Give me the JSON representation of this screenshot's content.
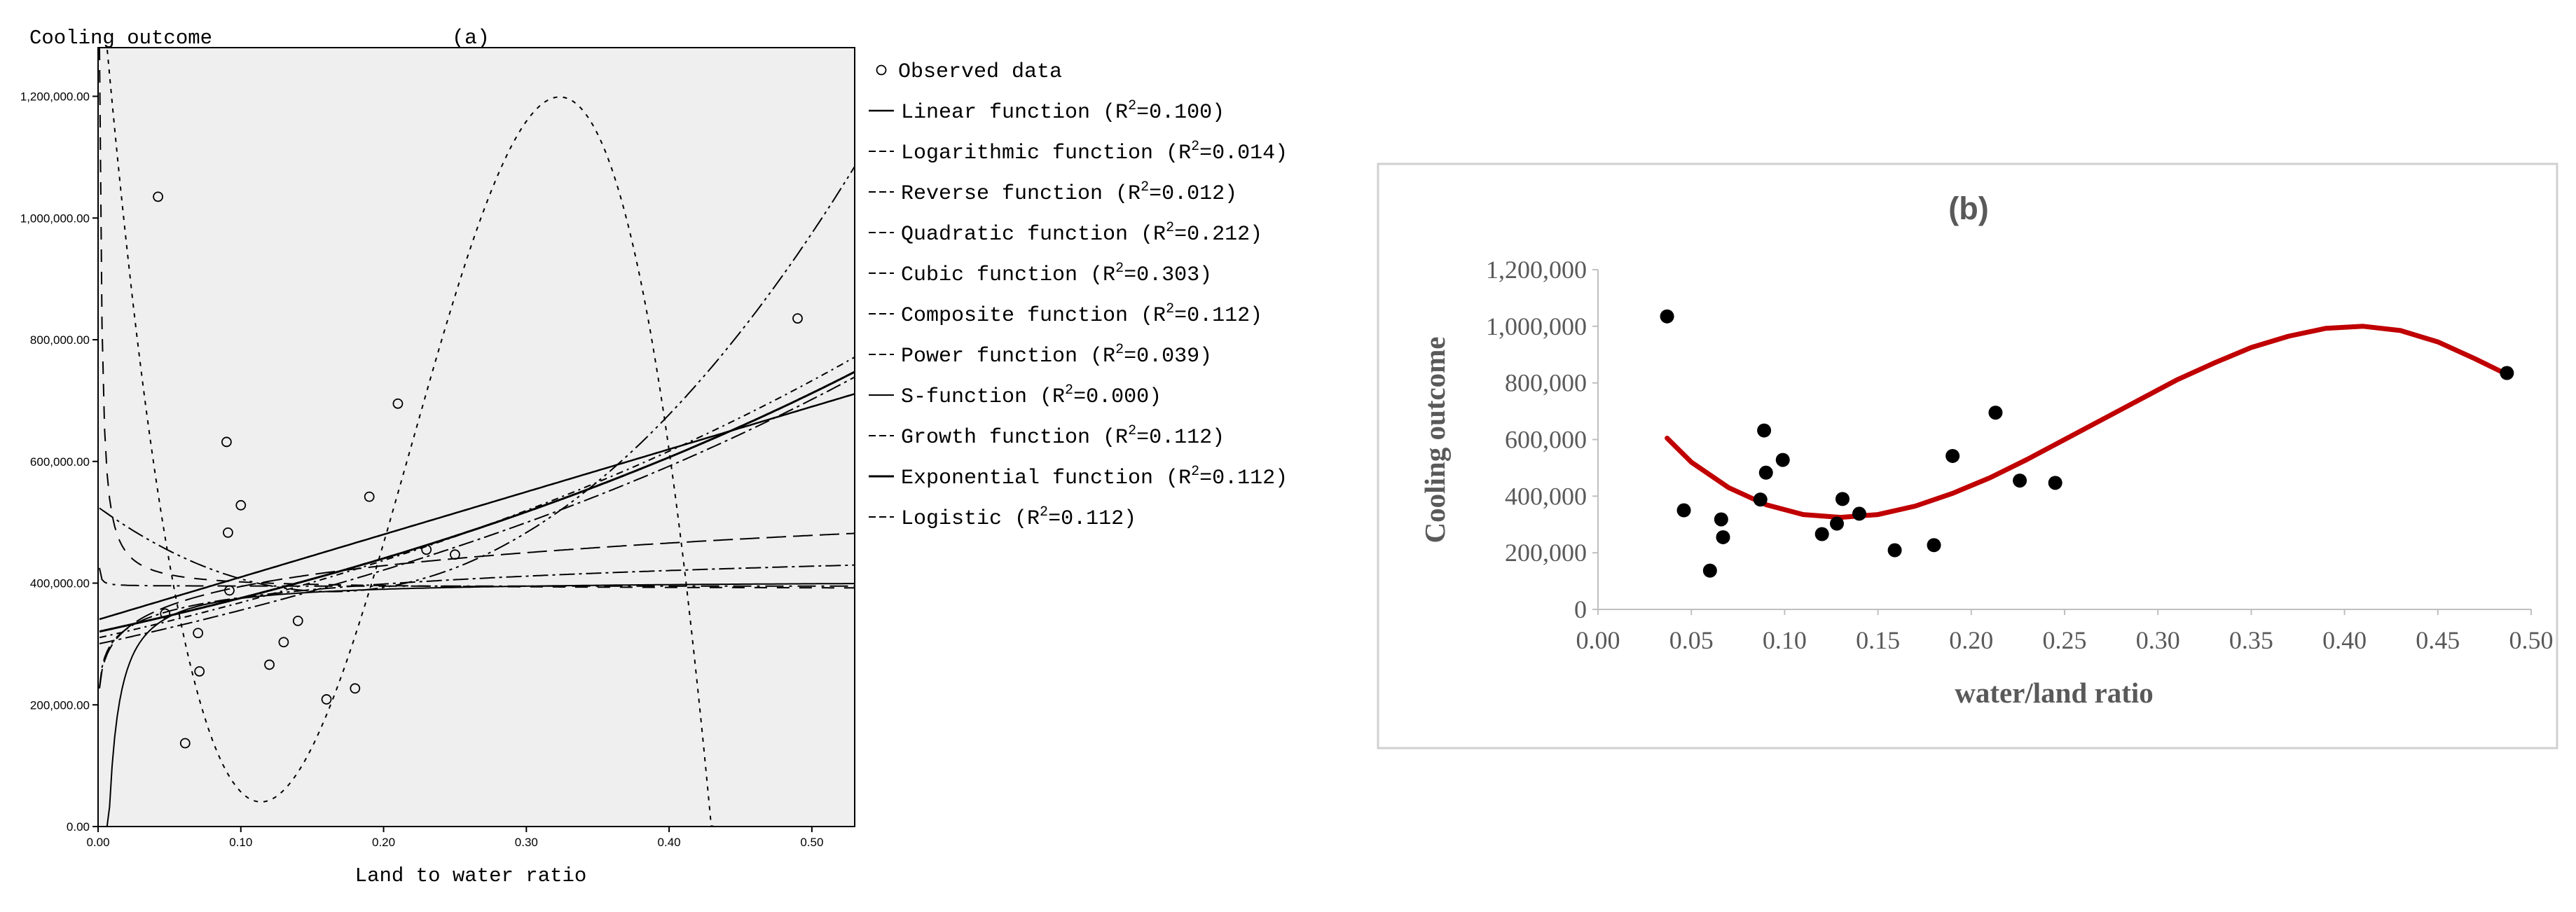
{
  "chart_data": [
    {
      "panel": "(a)",
      "type": "scatter",
      "title": "(a)",
      "ylabel": "Cooling outcome",
      "xlabel": "Land to water ratio",
      "xlim": [
        0,
        0.53
      ],
      "ylim": [
        0,
        1280000
      ],
      "x_ticks": [
        "0.00",
        "0.10",
        "0.20",
        "0.30",
        "0.40",
        "0.50"
      ],
      "x_tick_values": [
        0,
        0.1,
        0.2,
        0.3,
        0.4,
        0.5
      ],
      "y_ticks": [
        "0.00",
        "200,000.00",
        "400,000.00",
        "600,000.00",
        "800,000.00",
        "1,000,000.00",
        "1,200,000.00"
      ],
      "y_tick_values": [
        0,
        200000,
        400000,
        600000,
        800000,
        1000000,
        1200000
      ],
      "background": "#efefef",
      "grid": false,
      "legend_position": "right",
      "observed": {
        "name": "Observed data",
        "x": [
          0.042,
          0.047,
          0.061,
          0.07,
          0.071,
          0.09,
          0.091,
          0.092,
          0.1,
          0.12,
          0.13,
          0.14,
          0.16,
          0.18,
          0.19,
          0.21,
          0.23,
          0.25,
          0.49
        ],
        "y": [
          1035000,
          350000,
          137000,
          318000,
          255000,
          632000,
          483000,
          388000,
          528000,
          266000,
          303000,
          338000,
          209000,
          227000,
          542000,
          695000,
          455000,
          447000,
          835000
        ]
      },
      "fits": [
        {
          "name": "Linear function",
          "r2_label": "(R",
          "r2_value": "=0.100)"
        },
        {
          "name": "Logarithmic function",
          "r2_label": "(R",
          "r2_value": "=0.014)"
        },
        {
          "name": "Reverse function",
          "r2_label": "(R",
          "r2_value": "=0.012)"
        },
        {
          "name": "Quadratic function",
          "r2_label": "(R",
          "r2_value": "=0.212)"
        },
        {
          "name": "Cubic function",
          "r2_label": "(R",
          "r2_value": "=0.303)"
        },
        {
          "name": "Composite function",
          "r2_label": "(R",
          "r2_value": "=0.112)"
        },
        {
          "name": "Power function",
          "r2_label": "(R",
          "r2_value": "=0.039)"
        },
        {
          "name": "S-function",
          "r2_label": "(R",
          "r2_value": "=0.000)"
        },
        {
          "name": "Growth function",
          "r2_label": "(R",
          "r2_value": "=0.112)"
        },
        {
          "name": "Exponential function",
          "r2_label": "(R",
          "r2_value": "=0.112)"
        },
        {
          "name": "Logistic",
          "r2_label": "(R",
          "r2_value": "=0.112)"
        }
      ],
      "r2_superscript": "2"
    },
    {
      "panel": "(b)",
      "type": "scatter",
      "title": "(b)",
      "ylabel": "Cooling outcome",
      "xlabel": "water/land ratio",
      "xlim": [
        0,
        0.5
      ],
      "ylim": [
        0,
        1200000
      ],
      "x_ticks": [
        "0.00",
        "0.05",
        "0.10",
        "0.15",
        "0.20",
        "0.25",
        "0.30",
        "0.35",
        "0.40",
        "0.45",
        "0.50"
      ],
      "x_tick_values": [
        0,
        0.05,
        0.1,
        0.15,
        0.2,
        0.25,
        0.3,
        0.35,
        0.4,
        0.45,
        0.5
      ],
      "y_ticks": [
        "0",
        "200,000",
        "400,000",
        "600,000",
        "800,000",
        "1,000,000",
        "1,200,000"
      ],
      "y_tick_values": [
        0,
        200000,
        400000,
        600000,
        800000,
        1000000,
        1200000
      ],
      "grid": false,
      "point_color": "#000000",
      "trend_color": "#c00000",
      "points": {
        "x": [
          0.037,
          0.046,
          0.06,
          0.066,
          0.067,
          0.087,
          0.089,
          0.09,
          0.099,
          0.12,
          0.128,
          0.131,
          0.14,
          0.159,
          0.18,
          0.19,
          0.213,
          0.226,
          0.245,
          0.487
        ],
        "y": [
          1035000,
          350000,
          137000,
          318000,
          255000,
          388000,
          632000,
          483000,
          528000,
          266000,
          303000,
          390000,
          338000,
          209000,
          227000,
          542000,
          695000,
          455000,
          447000,
          835000
        ]
      },
      "trend": {
        "x": [
          0.037,
          0.05,
          0.07,
          0.09,
          0.11,
          0.13,
          0.15,
          0.17,
          0.19,
          0.21,
          0.23,
          0.25,
          0.27,
          0.29,
          0.31,
          0.33,
          0.35,
          0.37,
          0.39,
          0.41,
          0.43,
          0.45,
          0.47,
          0.487
        ],
        "y": [
          605000,
          520000,
          430000,
          370000,
          335000,
          325000,
          335000,
          365000,
          410000,
          465000,
          530000,
          600000,
          670000,
          740000,
          810000,
          870000,
          925000,
          965000,
          993000,
          1000000,
          985000,
          945000,
          885000,
          830000
        ]
      }
    }
  ]
}
